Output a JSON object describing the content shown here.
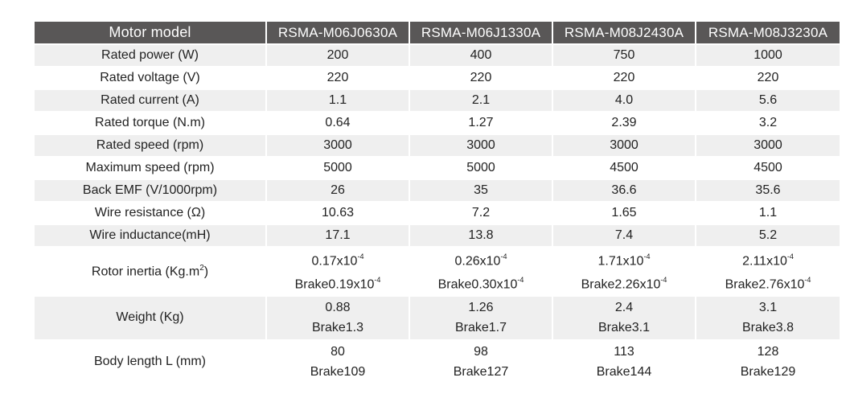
{
  "table": {
    "header": {
      "label": "Motor model",
      "models": [
        "RSMA-M06J0630A",
        "RSMA-M06J1330A",
        "RSMA-M08J2430A",
        "RSMA-M08J3230A"
      ]
    },
    "rows": [
      {
        "label": "Rated power (W)",
        "values": [
          "200",
          "400",
          "750",
          "1000"
        ]
      },
      {
        "label": "Rated voltage (V)",
        "values": [
          "220",
          "220",
          "220",
          "220"
        ]
      },
      {
        "label": "Rated current (A)",
        "values": [
          "1.1",
          "2.1",
          "4.0",
          "5.6"
        ]
      },
      {
        "label": "Rated torque (N.m)",
        "values": [
          "0.64",
          "1.27",
          "2.39",
          "3.2"
        ]
      },
      {
        "label": "Rated speed (rpm)",
        "values": [
          "3000",
          "3000",
          "3000",
          "3000"
        ]
      },
      {
        "label": "Maximum speed (rpm)",
        "values": [
          "5000",
          "5000",
          "4500",
          "4500"
        ]
      },
      {
        "label": "Back EMF (V/1000rpm)",
        "values": [
          "26",
          "35",
          "36.6",
          "35.6"
        ]
      },
      {
        "label": "Wire resistance (Ω)",
        "values": [
          "10.63",
          "7.2",
          "1.65",
          "1.1"
        ]
      },
      {
        "label": "Wire inductance(mH)",
        "values": [
          "17.1",
          "13.8",
          "7.4",
          "5.2"
        ]
      }
    ],
    "rotor_inertia": {
      "label": "Rotor inertia (Kg.m",
      "label_sup": "2",
      "label_close": ")",
      "exponent": "-4",
      "standard": [
        "0.17x10",
        "0.26x10",
        "1.71x10",
        "2.11x10"
      ],
      "brake": [
        "Brake0.19x10",
        "Brake0.30x10",
        "Brake2.26x10",
        "Brake2.76x10"
      ]
    },
    "weight": {
      "label": "Weight (Kg)",
      "standard": [
        "0.88",
        "1.26",
        "2.4",
        "3.1"
      ],
      "brake": [
        "Brake1.3",
        "Brake1.7",
        "Brake3.1",
        "Brake3.8"
      ]
    },
    "body_length": {
      "label": "Body length L (mm)",
      "standard": [
        "80",
        "98",
        "113",
        "128"
      ],
      "brake": [
        "Brake109",
        "Brake127",
        "Brake144",
        "Brake129"
      ]
    }
  },
  "colors": {
    "header_bg": "#595757",
    "header_text": "#ffffff",
    "stripe_bg": "#efefef",
    "text": "#222222"
  }
}
